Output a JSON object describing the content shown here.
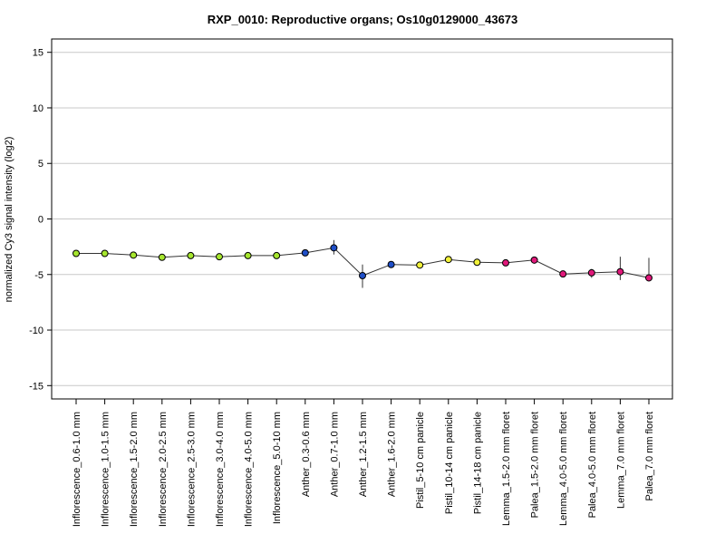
{
  "chart_data": {
    "type": "line",
    "title": "RXP_0010: Reproductive organs; Os10g0129000_43673",
    "ylabel": "normalized Cy3 signal intensity (log2)",
    "xlabel": "",
    "ylim": [
      -16.2,
      16.2
    ],
    "yticks": [
      -15,
      -10,
      -5,
      0,
      5,
      10,
      15
    ],
    "grid": "horizontal",
    "categories": [
      "Inflorescence_0.6-1.0 mm",
      "Inflorescence_1.0-1.5 mm",
      "Inflorescence_1.5-2.0 mm",
      "Inflorescence_2.0-2.5 mm",
      "Inflorescence_2.5-3.0 mm",
      "Inflorescence_3.0-4.0 mm",
      "Inflorescence_4.0-5.0 mm",
      "Inflorescence_5.0-10 mm",
      "Anther_0.3-0.6 mm",
      "Anther_0.7-1.0 mm",
      "Anther_1.2-1.5 mm",
      "Anther_1.6-2.0 mm",
      "Pistil_5-10 cm panicle",
      "Pistil_10-14 cm panicle",
      "Pistil_14-18 cm panicle",
      "Lemma_1.5-2.0 mm floret",
      "Palea_1.5-2.0 mm floret",
      "Lemma_4.0-5.0 mm floret",
      "Palea_4.0-5.0 mm floret",
      "Lemma_7.0 mm floret",
      "Palea_7.0 mm floret"
    ],
    "values": [
      -3.1,
      -3.1,
      -3.25,
      -3.45,
      -3.3,
      -3.4,
      -3.3,
      -3.3,
      -3.05,
      -2.6,
      -5.1,
      -4.1,
      -4.15,
      -3.65,
      -3.9,
      -3.95,
      -3.7,
      -4.95,
      -4.85,
      -4.75,
      -5.3
    ],
    "error_low": [
      -3.1,
      -3.1,
      -3.25,
      -3.45,
      -3.3,
      -3.4,
      -3.3,
      -3.3,
      -3.05,
      -3.2,
      -6.2,
      -4.1,
      -4.15,
      -3.65,
      -3.9,
      -3.95,
      -3.7,
      -5.05,
      -5.3,
      -5.5,
      -5.4
    ],
    "error_high": [
      -3.1,
      -3.1,
      -3.25,
      -3.45,
      -3.3,
      -3.4,
      -3.3,
      -3.3,
      -3.05,
      -1.9,
      -4.1,
      -4.1,
      -4.15,
      -3.65,
      -3.9,
      -3.95,
      -3.7,
      -4.85,
      -4.5,
      -3.4,
      -3.5
    ],
    "point_colors": [
      "#a6e62e",
      "#a6e62e",
      "#a6e62e",
      "#a6e62e",
      "#a6e62e",
      "#a6e62e",
      "#a6e62e",
      "#a6e62e",
      "#1f4fc8",
      "#1f4fc8",
      "#1f4fc8",
      "#1f4fc8",
      "#f2f23a",
      "#f2f23a",
      "#f2f23a",
      "#e0187a",
      "#e0187a",
      "#e0187a",
      "#e0187a",
      "#e0187a",
      "#e0187a"
    ],
    "line_color": "#333333",
    "grid_color": "#c8c8c8"
  }
}
